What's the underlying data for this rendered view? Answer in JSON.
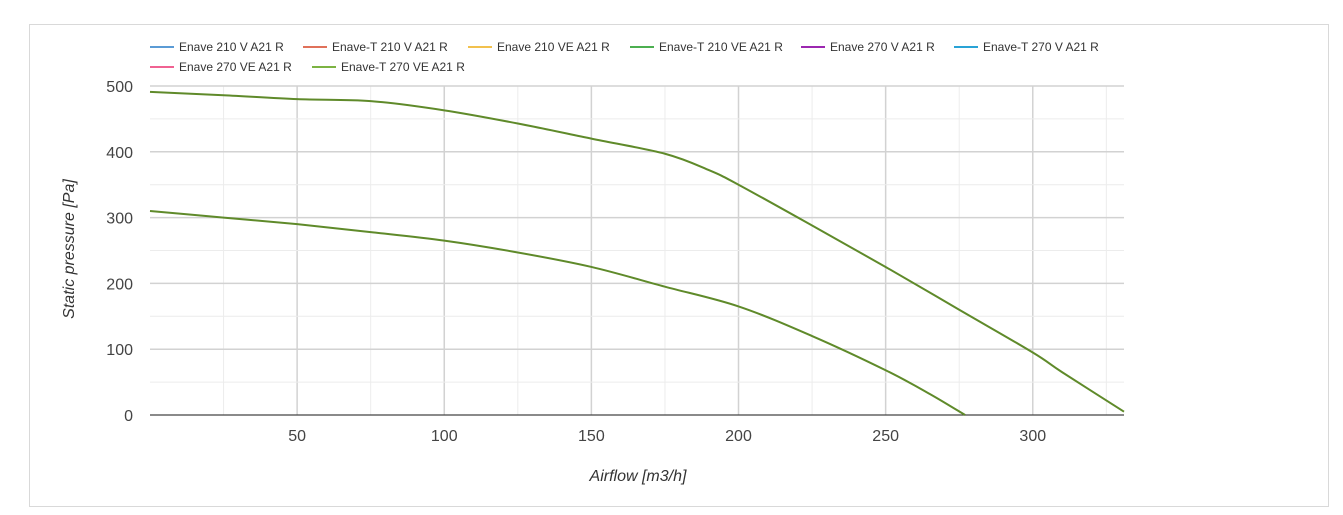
{
  "chart_data": {
    "type": "line",
    "xlabel": "Airflow [m3/h]",
    "ylabel": "Static pressure [Pa]",
    "xlim": [
      0,
      331
    ],
    "ylim": [
      0,
      500
    ],
    "x_ticks": [
      50,
      100,
      150,
      200,
      250,
      300
    ],
    "y_ticks": [
      0,
      100,
      200,
      300,
      400,
      500
    ],
    "grid": true,
    "legend_position": "top-left",
    "series": [
      {
        "name": "Enave 210 V A21 R",
        "color": "#5b9bd5",
        "x": [],
        "y": []
      },
      {
        "name": "Enave-T 210 V A21 R",
        "color": "#e0715a",
        "x": [],
        "y": []
      },
      {
        "name": "Enave 210 VE A21 R",
        "color": "#f2c14e",
        "x": [],
        "y": []
      },
      {
        "name": "Enave-T 210 VE A21 R",
        "color": "#4caf50",
        "x": [
          0,
          25,
          50,
          75,
          100,
          125,
          150,
          175,
          200,
          225,
          250,
          265,
          277
        ],
        "y": [
          310,
          300,
          290,
          278,
          265,
          247,
          225,
          195,
          165,
          120,
          68,
          32,
          0
        ]
      },
      {
        "name": "Enave 270 V A21 R",
        "color": "#9c27b0",
        "x": [],
        "y": []
      },
      {
        "name": "Enave-T 270 V A21 R",
        "color": "#29a3d6",
        "x": [],
        "y": []
      },
      {
        "name": "Enave 270 VE A21 R",
        "color": "#f06292",
        "x": [],
        "y": []
      },
      {
        "name": "Enave-T 270 VE A21 R",
        "color": "#7cb342",
        "x": [
          0,
          25,
          50,
          75,
          100,
          125,
          150,
          175,
          190,
          200,
          225,
          250,
          275,
          300,
          310,
          331
        ],
        "y": [
          491,
          486,
          480,
          477,
          463,
          443,
          420,
          397,
          372,
          350,
          288,
          225,
          160,
          95,
          65,
          5
        ]
      }
    ]
  }
}
